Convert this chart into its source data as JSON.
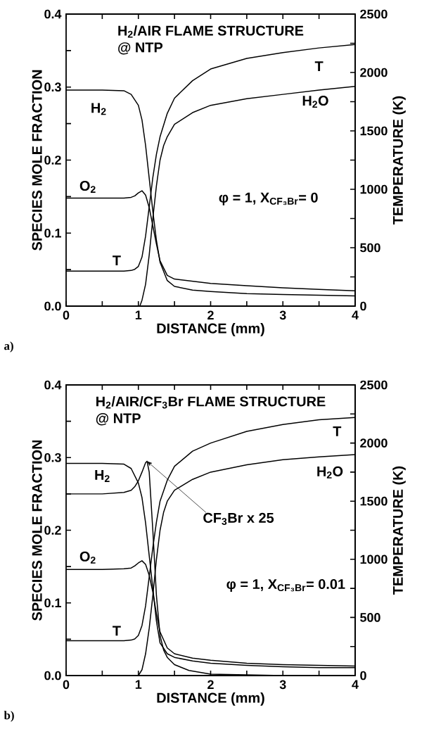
{
  "chart_data": [
    {
      "type": "line",
      "title": "H$_{2}$/AIR FLAME STRUCTURE",
      "subtitle": "@ NTP",
      "xlabel": "DISTANCE (mm)",
      "ylabel": "SPECIES MOLE FRACTION",
      "y2label": "TEMPERATURE (K)",
      "xlim": [
        0,
        4
      ],
      "ylim": [
        0,
        0.4
      ],
      "y2lim": [
        0,
        2500
      ],
      "xticks": [
        0,
        {
          "value": 0.5,
          "label": null
        },
        1,
        {
          "value": 1.5,
          "label": null
        },
        2,
        {
          "value": 2.5,
          "label": null
        },
        3,
        {
          "value": 3.5,
          "label": null
        },
        4
      ],
      "yticks": [
        {
          "value": 0,
          "label": "0.0"
        },
        {
          "value": 0.05,
          "label": null
        },
        {
          "value": 0.1,
          "label": "0.1"
        },
        {
          "value": 0.15,
          "label": null
        },
        {
          "value": 0.2,
          "label": "0.2"
        },
        {
          "value": 0.25,
          "label": null
        },
        {
          "value": 0.3,
          "label": "0.3"
        },
        {
          "value": 0.35,
          "label": null
        },
        {
          "value": 0.4,
          "label": "0.4"
        }
      ],
      "y2ticks": [
        0,
        {
          "value": 250,
          "label": null
        },
        500,
        {
          "value": 750,
          "label": null
        },
        1000,
        {
          "value": 1250,
          "label": null
        },
        1500,
        {
          "value": 1750,
          "label": null
        },
        2000,
        {
          "value": 2250,
          "label": null
        },
        2500
      ],
      "series": [
        {
          "name": "H$_{2}$",
          "color": "#000000",
          "x": [
            0,
            0.5,
            0.8,
            0.9,
            1.0,
            1.05,
            1.1,
            1.15,
            1.2,
            1.25,
            1.3,
            1.4,
            1.5,
            1.75,
            2,
            2.5,
            3,
            3.5,
            4
          ],
          "values": [
            0.296,
            0.296,
            0.295,
            0.29,
            0.275,
            0.255,
            0.22,
            0.175,
            0.13,
            0.09,
            0.06,
            0.035,
            0.027,
            0.022,
            0.02,
            0.017,
            0.016,
            0.015,
            0.014
          ]
        },
        {
          "name": "O$_{2}$",
          "color": "#000000",
          "x": [
            0,
            0.5,
            0.8,
            0.9,
            0.95,
            1.0,
            1.05,
            1.1,
            1.15,
            1.2,
            1.25,
            1.3,
            1.4,
            1.5,
            1.75,
            2,
            2.5,
            3,
            3.5,
            4
          ],
          "values": [
            0.148,
            0.148,
            0.148,
            0.149,
            0.151,
            0.155,
            0.158,
            0.152,
            0.135,
            0.11,
            0.085,
            0.062,
            0.042,
            0.037,
            0.034,
            0.031,
            0.028,
            0.025,
            0.023,
            0.021
          ]
        },
        {
          "name": "H$_{2}$O",
          "color": "#000000",
          "x": [
            1.02,
            1.05,
            1.1,
            1.15,
            1.2,
            1.25,
            1.3,
            1.35,
            1.4,
            1.5,
            1.75,
            2,
            2.5,
            3,
            3.5,
            4
          ],
          "values": [
            0,
            0.008,
            0.03,
            0.07,
            0.12,
            0.165,
            0.2,
            0.22,
            0.232,
            0.249,
            0.265,
            0.275,
            0.284,
            0.29,
            0.296,
            0.301
          ]
        },
        {
          "name": "T",
          "color": "#000000",
          "axis": "y2",
          "x": [
            0,
            0.5,
            0.8,
            0.9,
            0.95,
            1.0,
            1.05,
            1.1,
            1.15,
            1.2,
            1.25,
            1.3,
            1.4,
            1.5,
            1.75,
            2,
            2.5,
            3,
            3.5,
            4
          ],
          "values": [
            300,
            300,
            300,
            305,
            315,
            340,
            420,
            600,
            850,
            1100,
            1300,
            1450,
            1650,
            1780,
            1930,
            2030,
            2120,
            2170,
            2210,
            2240
          ]
        }
      ],
      "annotations": [
        "a)",
        "φ = 1, X$_{CF₃Br}$= 0"
      ]
    },
    {
      "type": "line",
      "title": "H$_{2}$/AIR/CF$_{3}$Br FLAME STRUCTURE",
      "subtitle": "@ NTP",
      "xlabel": "DISTANCE (mm)",
      "ylabel": "SPECIES MOLE FRACTION",
      "y2label": "TEMPERATURE (K)",
      "xlim": [
        0,
        4
      ],
      "ylim": [
        0,
        0.4
      ],
      "y2lim": [
        0,
        2500
      ],
      "xticks": [
        0,
        {
          "value": 0.5,
          "label": null
        },
        1,
        {
          "value": 1.5,
          "label": null
        },
        2,
        {
          "value": 2.5,
          "label": null
        },
        3,
        {
          "value": 3.5,
          "label": null
        },
        4
      ],
      "yticks": [
        {
          "value": 0,
          "label": "0.0"
        },
        {
          "value": 0.05,
          "label": null
        },
        {
          "value": 0.1,
          "label": "0.1"
        },
        {
          "value": 0.15,
          "label": null
        },
        {
          "value": 0.2,
          "label": "0.2"
        },
        {
          "value": 0.25,
          "label": null
        },
        {
          "value": 0.3,
          "label": "0.3"
        },
        {
          "value": 0.35,
          "label": null
        },
        {
          "value": 0.4,
          "label": "0.4"
        }
      ],
      "y2ticks": [
        0,
        {
          "value": 250,
          "label": null
        },
        500,
        {
          "value": 750,
          "label": null
        },
        1000,
        {
          "value": 1250,
          "label": null
        },
        1500,
        {
          "value": 1750,
          "label": null
        },
        2000,
        {
          "value": 2250,
          "label": null
        },
        2500
      ],
      "series": [
        {
          "name": "H$_{2}$",
          "color": "#000000",
          "x": [
            0,
            0.5,
            0.8,
            0.9,
            1.0,
            1.05,
            1.1,
            1.15,
            1.2,
            1.25,
            1.3,
            1.4,
            1.5,
            1.75,
            2,
            2.5,
            3,
            3.5,
            4
          ],
          "values": [
            0.292,
            0.292,
            0.291,
            0.285,
            0.265,
            0.245,
            0.21,
            0.165,
            0.12,
            0.075,
            0.045,
            0.03,
            0.025,
            0.02,
            0.017,
            0.014,
            0.012,
            0.011,
            0.011
          ]
        },
        {
          "name": "O$_{2}$",
          "color": "#000000",
          "x": [
            0,
            0.5,
            0.8,
            0.9,
            0.95,
            1.0,
            1.05,
            1.1,
            1.15,
            1.2,
            1.25,
            1.3,
            1.4,
            1.5,
            1.75,
            2,
            2.5,
            3,
            3.5,
            4
          ],
          "values": [
            0.146,
            0.146,
            0.147,
            0.148,
            0.151,
            0.155,
            0.158,
            0.153,
            0.138,
            0.115,
            0.085,
            0.06,
            0.038,
            0.03,
            0.024,
            0.021,
            0.017,
            0.015,
            0.014,
            0.013
          ]
        },
        {
          "color": "#000000",
          "x": [
            0,
            0.5,
            0.8,
            0.9,
            0.95,
            1.0,
            1.05,
            1.1,
            1.12,
            1.15,
            1.2,
            1.25,
            1.3,
            1.35,
            1.4,
            1.5,
            1.7,
            2,
            2.5,
            3,
            4
          ],
          "values": [
            0.25,
            0.25,
            0.252,
            0.255,
            0.26,
            0.268,
            0.28,
            0.293,
            0.295,
            0.28,
            0.2,
            0.11,
            0.055,
            0.035,
            0.025,
            0.015,
            0.007,
            0.002,
            0.001,
            0,
            0
          ]
        },
        {
          "name": "H$_{2}$O",
          "color": "#000000",
          "x": [
            1.0,
            1.05,
            1.1,
            1.15,
            1.2,
            1.25,
            1.3,
            1.35,
            1.4,
            1.5,
            1.75,
            2,
            2.5,
            3,
            3.5,
            4
          ],
          "values": [
            0,
            0.008,
            0.03,
            0.065,
            0.11,
            0.16,
            0.2,
            0.225,
            0.24,
            0.255,
            0.27,
            0.28,
            0.29,
            0.297,
            0.301,
            0.304
          ]
        },
        {
          "name": "T",
          "color": "#000000",
          "axis": "y2",
          "x": [
            0,
            0.5,
            0.8,
            0.9,
            0.95,
            1.0,
            1.05,
            1.1,
            1.15,
            1.2,
            1.25,
            1.3,
            1.4,
            1.5,
            1.75,
            2,
            2.5,
            3,
            3.5,
            4
          ],
          "values": [
            300,
            300,
            300,
            305,
            315,
            345,
            430,
            600,
            850,
            1100,
            1320,
            1500,
            1680,
            1800,
            1930,
            2000,
            2100,
            2160,
            2200,
            2220
          ]
        }
      ],
      "annotations": [
        "b)",
        "φ = 1, X$_{CF₃Br}$= 0.01",
        {
          "text": "CF$_{3}$Br x 25",
          "x": 1.12,
          "y": 0.295
        }
      ]
    }
  ]
}
